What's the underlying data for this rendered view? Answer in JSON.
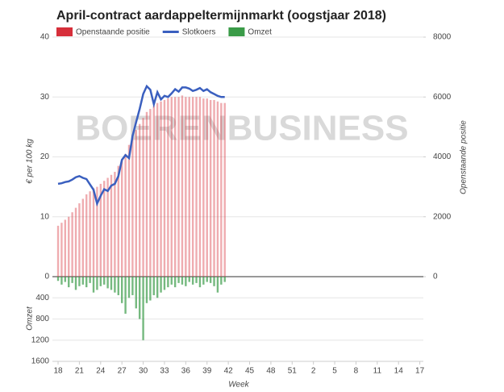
{
  "chart_data": {
    "type": "combo",
    "title": "April-contract aardappeltermijnmarkt (oogstjaar 2018)",
    "watermark": "BOERENBUSINESS",
    "x_label": "Week",
    "y_label": "€ per 100 kg",
    "y2_label": "Openstaande positie",
    "y3_label": "Omzet",
    "x": [
      18,
      18.5,
      19,
      19.5,
      20,
      20.5,
      21,
      21.5,
      22,
      22.5,
      23,
      23.5,
      24,
      24.5,
      25,
      25.5,
      26,
      26.5,
      27,
      27.5,
      28,
      28.5,
      29,
      29.5,
      30,
      30.5,
      31,
      31.5,
      32,
      32.5,
      33,
      33.5,
      34,
      34.5,
      35,
      35.5,
      36,
      36.5,
      37,
      37.5,
      38,
      38.5,
      39,
      39.5,
      40,
      40.5,
      41,
      41.5
    ],
    "xlim": [
      17.2,
      69.5
    ],
    "xticks": [
      18,
      21,
      24,
      27,
      30,
      33,
      36,
      39,
      42,
      45,
      48,
      51,
      {
        "value": 54,
        "label": "2"
      },
      {
        "value": 57,
        "label": "5"
      },
      {
        "value": 60,
        "label": "8"
      },
      {
        "value": 63,
        "label": "11"
      },
      {
        "value": 66,
        "label": "14"
      },
      {
        "value": 69,
        "label": "17"
      }
    ],
    "ylim": [
      0,
      40
    ],
    "yticks": [
      0,
      10,
      20,
      30,
      40
    ],
    "y2lim": [
      0,
      8000
    ],
    "y2ticks": [
      0,
      2000,
      4000,
      6000,
      8000
    ],
    "y3lim": [
      0,
      1600
    ],
    "y3ticks": [
      400,
      800,
      1200,
      1600
    ],
    "grid": true,
    "legend": "top-left",
    "series": [
      {
        "name": "Openstaande positie",
        "type": "bar",
        "axis": "y2",
        "color": "#d62f3a",
        "values": [
          1700,
          1800,
          1900,
          2000,
          2150,
          2300,
          2450,
          2600,
          2750,
          2850,
          2950,
          3000,
          3100,
          3200,
          3300,
          3400,
          3500,
          3700,
          3900,
          4100,
          4400,
          4700,
          4900,
          5100,
          5300,
          5500,
          5600,
          5700,
          5800,
          5850,
          5900,
          5950,
          6000,
          6000,
          6000,
          6050,
          6000,
          6000,
          6000,
          6000,
          6000,
          5950,
          5950,
          5900,
          5900,
          5850,
          5800,
          5800
        ]
      },
      {
        "name": "Slotkoers",
        "type": "line",
        "axis": "y",
        "color": "#3a5fbf",
        "values": [
          15.5,
          15.6,
          15.8,
          15.9,
          16.2,
          16.6,
          16.8,
          16.5,
          16.3,
          15.4,
          14.5,
          12.2,
          13.5,
          14.6,
          14.3,
          15.2,
          15.5,
          16.8,
          19.5,
          20.3,
          19.8,
          23.5,
          25.8,
          28.0,
          30.5,
          31.8,
          31.2,
          28.8,
          30.8,
          29.6,
          30.2,
          30.0,
          30.6,
          31.3,
          30.9,
          31.6,
          31.6,
          31.4,
          31.0,
          31.2,
          31.5,
          31.0,
          31.3,
          30.8,
          30.5,
          30.2,
          30.0,
          30.0
        ]
      },
      {
        "name": "Omzet",
        "type": "bar",
        "axis": "y3",
        "color": "#3a9b48",
        "values": [
          80,
          150,
          100,
          200,
          120,
          250,
          180,
          150,
          200,
          120,
          300,
          250,
          180,
          150,
          220,
          250,
          300,
          350,
          500,
          700,
          400,
          350,
          600,
          800,
          1200,
          500,
          450,
          350,
          400,
          300,
          250,
          200,
          150,
          200,
          120,
          150,
          180,
          100,
          150,
          120,
          200,
          150,
          100,
          120,
          180,
          300,
          150,
          100
        ]
      }
    ]
  }
}
